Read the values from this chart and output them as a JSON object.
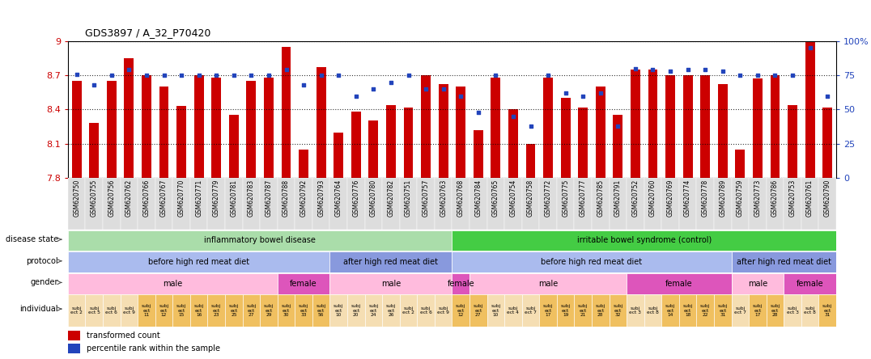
{
  "title": "GDS3897 / A_32_P70420",
  "samples": [
    "GSM620750",
    "GSM620755",
    "GSM620756",
    "GSM620762",
    "GSM620766",
    "GSM620767",
    "GSM620770",
    "GSM620771",
    "GSM620779",
    "GSM620781",
    "GSM620783",
    "GSM620787",
    "GSM620788",
    "GSM620792",
    "GSM620793",
    "GSM620764",
    "GSM620776",
    "GSM620780",
    "GSM620782",
    "GSM620751",
    "GSM620757",
    "GSM620763",
    "GSM620768",
    "GSM620784",
    "GSM620765",
    "GSM620754",
    "GSM620758",
    "GSM620772",
    "GSM620775",
    "GSM620777",
    "GSM620785",
    "GSM620791",
    "GSM620752",
    "GSM620760",
    "GSM620769",
    "GSM620774",
    "GSM620778",
    "GSM620789",
    "GSM620759",
    "GSM620773",
    "GSM620786",
    "GSM620753",
    "GSM620761",
    "GSM620790"
  ],
  "bar_values": [
    8.65,
    8.28,
    8.65,
    8.85,
    8.7,
    8.6,
    8.43,
    8.7,
    8.68,
    8.35,
    8.65,
    8.68,
    8.95,
    8.05,
    8.77,
    8.2,
    8.38,
    8.3,
    8.44,
    8.42,
    8.7,
    8.62,
    8.6,
    8.22,
    8.68,
    8.4,
    8.1,
    8.68,
    8.5,
    8.42,
    8.6,
    8.35,
    8.75,
    8.75,
    8.7,
    8.7,
    8.7,
    8.62,
    8.05,
    8.67,
    8.7,
    8.44,
    9.05,
    8.42
  ],
  "percentile_values": [
    76,
    68,
    75,
    79,
    75,
    75,
    75,
    75,
    75,
    75,
    75,
    75,
    79,
    68,
    75,
    75,
    60,
    65,
    70,
    75,
    65,
    65,
    60,
    48,
    75,
    45,
    38,
    75,
    62,
    60,
    62,
    38,
    80,
    79,
    78,
    79,
    79,
    78,
    75,
    75,
    75,
    75,
    95,
    60
  ],
  "ymin": 7.8,
  "ymax": 9.0,
  "yticks": [
    7.8,
    8.1,
    8.4,
    8.7,
    9.0
  ],
  "ytick_labels": [
    "7.8",
    "8.1",
    "8.4",
    "8.7",
    "9"
  ],
  "right_yticks": [
    0,
    25,
    50,
    75,
    100
  ],
  "right_ytick_labels": [
    "0",
    "25",
    "50",
    "75",
    "100%"
  ],
  "bar_color": "#cc0000",
  "dot_color": "#2244bb",
  "bar_bottom": 7.8,
  "disease_state_regions": [
    {
      "label": "inflammatory bowel disease",
      "start": 0,
      "end": 22,
      "color": "#aaddaa"
    },
    {
      "label": "irritable bowel syndrome (control)",
      "start": 22,
      "end": 44,
      "color": "#44cc44"
    }
  ],
  "protocol_regions": [
    {
      "label": "before high red meat diet",
      "start": 0,
      "end": 15,
      "color": "#aabbee"
    },
    {
      "label": "after high red meat diet",
      "start": 15,
      "end": 22,
      "color": "#8899dd"
    },
    {
      "label": "before high red meat diet",
      "start": 22,
      "end": 38,
      "color": "#aabbee"
    },
    {
      "label": "after high red meat diet",
      "start": 38,
      "end": 44,
      "color": "#8899dd"
    }
  ],
  "gender_regions": [
    {
      "label": "male",
      "start": 0,
      "end": 12,
      "color": "#ffbbdd"
    },
    {
      "label": "female",
      "start": 12,
      "end": 15,
      "color": "#dd55bb"
    },
    {
      "label": "male",
      "start": 15,
      "end": 22,
      "color": "#ffbbdd"
    },
    {
      "label": "female",
      "start": 22,
      "end": 23,
      "color": "#dd55bb"
    },
    {
      "label": "male",
      "start": 23,
      "end": 32,
      "color": "#ffbbdd"
    },
    {
      "label": "female",
      "start": 32,
      "end": 38,
      "color": "#dd55bb"
    },
    {
      "label": "male",
      "start": 38,
      "end": 41,
      "color": "#ffbbdd"
    },
    {
      "label": "female",
      "start": 41,
      "end": 44,
      "color": "#dd55bb"
    }
  ],
  "individual_labels": [
    "subj\nect 2",
    "subj\nect 5",
    "subj\nect 6",
    "subj\nect 9",
    "subj\nect\n11",
    "subj\nect\n12",
    "subj\nect\n15",
    "subj\nect\n16",
    "subj\nect\n23",
    "subj\nect\n25",
    "subj\nect\n27",
    "subj\nect\n29",
    "subj\nect\n30",
    "subj\nect\n33",
    "subj\nect\n56",
    "subj\nect\n10",
    "subj\nect\n20",
    "subj\nect\n24",
    "subj\nect\n26",
    "subj\nect 2",
    "subj\nect 6",
    "subj\nect 9",
    "subj\nect\n12",
    "subj\nect\n27",
    "subj\nect\n10",
    "subj\nect 4",
    "subj\nect 7",
    "subj\nect\n17",
    "subj\nect\n19",
    "subj\nect\n21",
    "subj\nect\n28",
    "subj\nect\n32",
    "subj\nect 3",
    "subj\nect 8",
    "subj\nect\n14",
    "subj\nect\n18",
    "subj\nect\n22",
    "subj\nect\n31",
    "subj\nect 7",
    "subj\nect\n17",
    "subj\nect\n28",
    "subj\nect 3",
    "subj\nect 8",
    "subj\nect\n31"
  ],
  "individual_colors": [
    "#f5deb3",
    "#f5deb3",
    "#f5deb3",
    "#f5deb3",
    "#f0c060",
    "#f0c060",
    "#f0c060",
    "#f0c060",
    "#f0c060",
    "#f0c060",
    "#f0c060",
    "#f0c060",
    "#f0c060",
    "#f0c060",
    "#f0c060",
    "#f5deb3",
    "#f5deb3",
    "#f5deb3",
    "#f5deb3",
    "#f5deb3",
    "#f5deb3",
    "#f5deb3",
    "#f0c060",
    "#f0c060",
    "#f5deb3",
    "#f5deb3",
    "#f5deb3",
    "#f0c060",
    "#f0c060",
    "#f0c060",
    "#f0c060",
    "#f0c060",
    "#f5deb3",
    "#f5deb3",
    "#f0c060",
    "#f0c060",
    "#f0c060",
    "#f0c060",
    "#f5deb3",
    "#f0c060",
    "#f0c060",
    "#f5deb3",
    "#f5deb3",
    "#f0c060"
  ],
  "annotation_color": "#cc0000",
  "right_yaxis_color": "#2244bb",
  "xtick_bg": "#dddddd"
}
